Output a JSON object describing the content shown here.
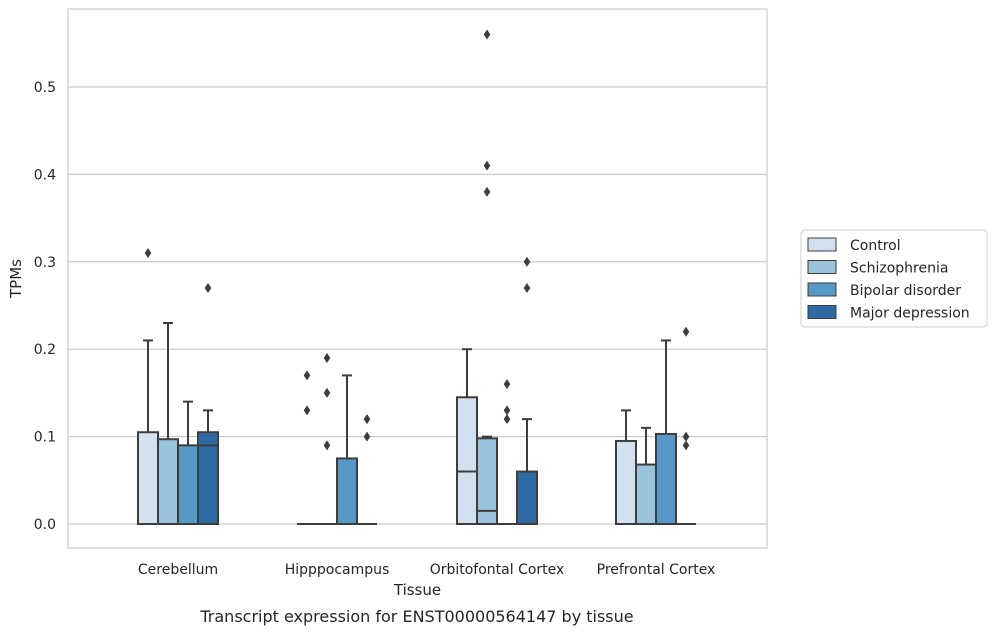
{
  "caption": "Transcript expression for ENST00000564147 by tissue",
  "chart_data": {
    "type": "box",
    "xlabel": "Tissue",
    "ylabel": "TPMs",
    "ylim": [
      -0.028,
      0.588
    ],
    "yticks": [
      0.0,
      0.1,
      0.2,
      0.3,
      0.4,
      0.5
    ],
    "grid": true,
    "legend_position": "outside-right",
    "categories": [
      "Cerebellum",
      "Hipppocampus",
      "Orbitofontal Cortex",
      "Prefrontal Cortex"
    ],
    "series": [
      {
        "name": "Control",
        "color": "#d2e1f0",
        "boxes": [
          {
            "q1": 0.0,
            "median": 0.0,
            "q3": 0.105,
            "whisker_low": 0.0,
            "whisker_high": 0.21,
            "outliers": [
              0.31
            ]
          },
          {
            "q1": 0.0,
            "median": 0.0,
            "q3": 0.0,
            "whisker_low": 0.0,
            "whisker_high": 0.0,
            "outliers": [
              0.13,
              0.17
            ]
          },
          {
            "q1": 0.0,
            "median": 0.06,
            "q3": 0.145,
            "whisker_low": 0.0,
            "whisker_high": 0.2,
            "outliers": []
          },
          {
            "q1": 0.0,
            "median": 0.0,
            "q3": 0.095,
            "whisker_low": 0.0,
            "whisker_high": 0.13,
            "outliers": []
          }
        ]
      },
      {
        "name": "Schizophrenia",
        "color": "#9ac3dc",
        "boxes": [
          {
            "q1": 0.0,
            "median": 0.0,
            "q3": 0.097,
            "whisker_low": 0.0,
            "whisker_high": 0.23,
            "outliers": []
          },
          {
            "q1": 0.0,
            "median": 0.0,
            "q3": 0.0,
            "whisker_low": 0.0,
            "whisker_high": 0.0,
            "outliers": [
              0.09,
              0.15,
              0.19
            ]
          },
          {
            "q1": 0.0,
            "median": 0.015,
            "q3": 0.098,
            "whisker_low": 0.0,
            "whisker_high": 0.1,
            "outliers": [
              0.38,
              0.41,
              0.56
            ]
          },
          {
            "q1": 0.0,
            "median": 0.0,
            "q3": 0.068,
            "whisker_low": 0.0,
            "whisker_high": 0.11,
            "outliers": []
          }
        ]
      },
      {
        "name": "Bipolar disorder",
        "color": "#5898c6",
        "boxes": [
          {
            "q1": 0.0,
            "median": 0.0,
            "q3": 0.09,
            "whisker_low": 0.0,
            "whisker_high": 0.14,
            "outliers": []
          },
          {
            "q1": 0.0,
            "median": 0.0,
            "q3": 0.075,
            "whisker_low": 0.0,
            "whisker_high": 0.17,
            "outliers": []
          },
          {
            "q1": 0.0,
            "median": 0.0,
            "q3": 0.0,
            "whisker_low": 0.0,
            "whisker_high": 0.0,
            "outliers": [
              0.12,
              0.13,
              0.16
            ]
          },
          {
            "q1": 0.0,
            "median": 0.0,
            "q3": 0.103,
            "whisker_low": 0.0,
            "whisker_high": 0.21,
            "outliers": []
          }
        ]
      },
      {
        "name": "Major depression",
        "color": "#2e6ba5",
        "boxes": [
          {
            "q1": 0.0,
            "median": 0.09,
            "q3": 0.105,
            "whisker_low": 0.0,
            "whisker_high": 0.13,
            "outliers": [
              0.27
            ]
          },
          {
            "q1": 0.0,
            "median": 0.0,
            "q3": 0.0,
            "whisker_low": 0.0,
            "whisker_high": 0.0,
            "outliers": [
              0.1,
              0.12
            ]
          },
          {
            "q1": 0.0,
            "median": 0.0,
            "q3": 0.06,
            "whisker_low": 0.0,
            "whisker_high": 0.12,
            "outliers": [
              0.27,
              0.3
            ]
          },
          {
            "q1": 0.0,
            "median": 0.0,
            "q3": 0.0,
            "whisker_low": 0.0,
            "whisker_high": 0.0,
            "outliers": [
              0.09,
              0.1,
              0.22
            ]
          }
        ]
      }
    ]
  }
}
